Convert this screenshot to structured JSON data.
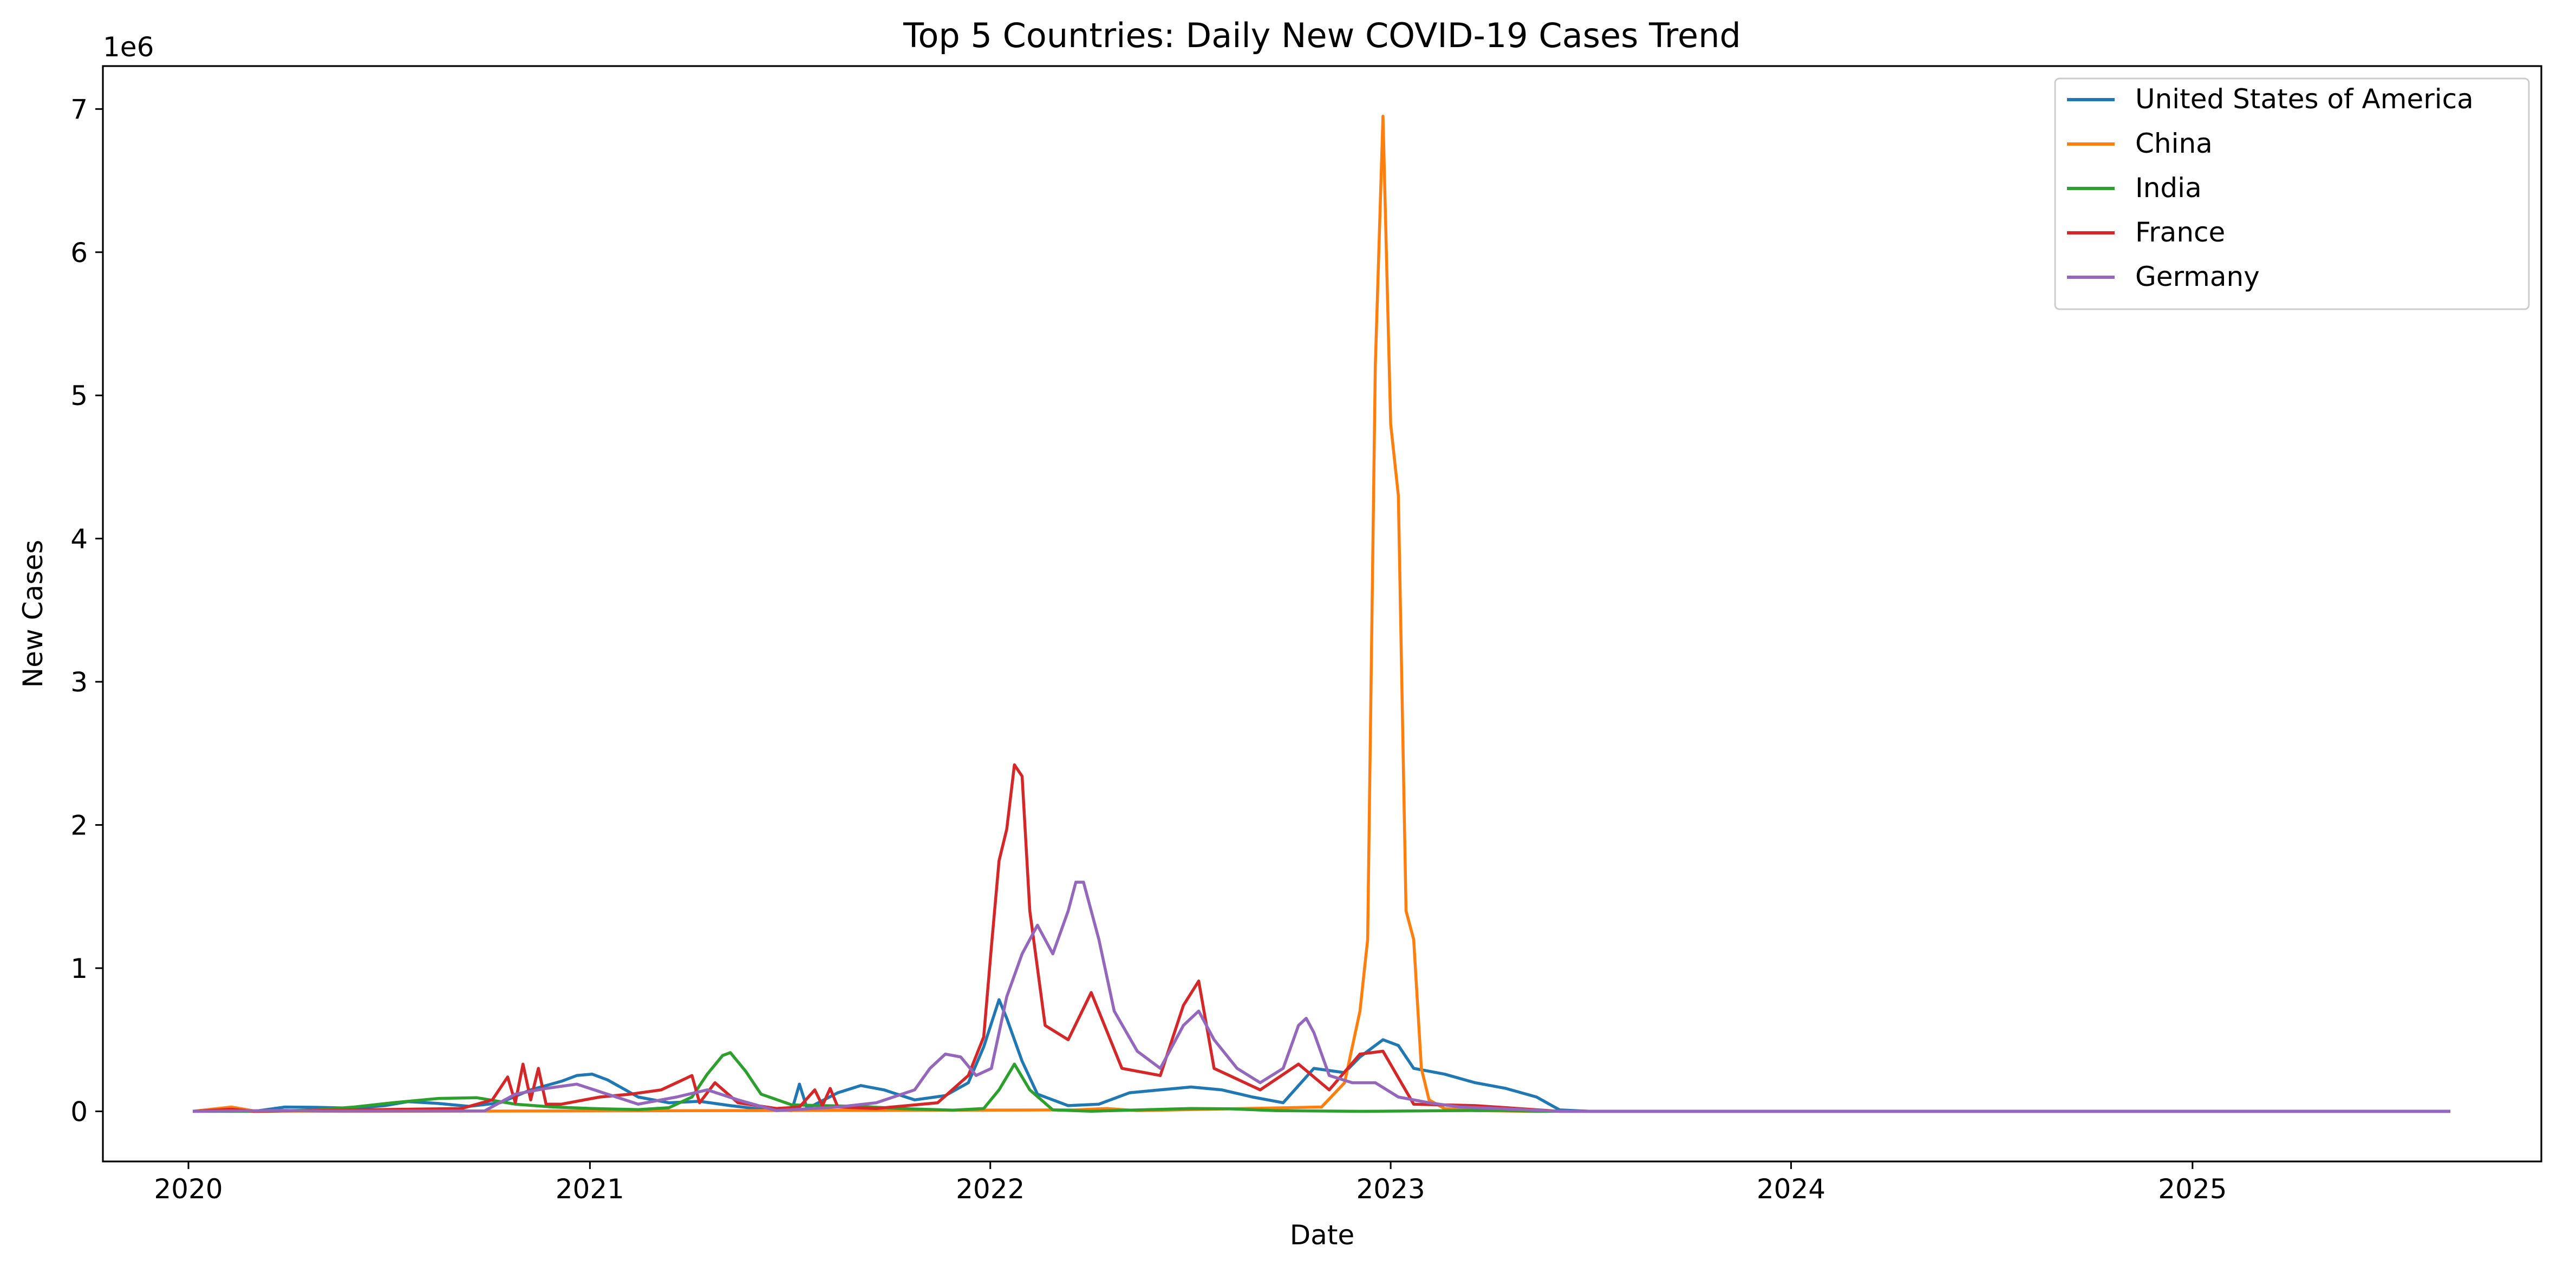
{
  "chart_data": {
    "type": "line",
    "title": "Top 5 Countries: Daily New COVID-19 Cases Trend",
    "xlabel": "Date",
    "ylabel": "New Cases",
    "y_offset_label": "1e6",
    "x_axis": "date",
    "xlim": [
      "2019-10-15",
      "2025-11-15"
    ],
    "ylim": [
      -350000,
      7300000
    ],
    "x_ticks": [
      "2020-01-01",
      "2021-01-01",
      "2022-01-01",
      "2023-01-01",
      "2024-01-01",
      "2025-01-01"
    ],
    "x_tick_labels": [
      "2020",
      "2021",
      "2022",
      "2023",
      "2024",
      "2025"
    ],
    "y_ticks": [
      0,
      1000000,
      2000000,
      3000000,
      4000000,
      5000000,
      6000000,
      7000000
    ],
    "y_tick_labels": [
      "0",
      "1",
      "2",
      "3",
      "4",
      "5",
      "6",
      "7"
    ],
    "legend_position": "top-right",
    "grid": false,
    "series": [
      {
        "name": "United States of America",
        "color": "#1f77b4",
        "points": [
          [
            "2020-01-05",
            0
          ],
          [
            "2020-03-01",
            0
          ],
          [
            "2020-03-29",
            30000
          ],
          [
            "2020-04-26",
            28000
          ],
          [
            "2020-05-31",
            22000
          ],
          [
            "2020-06-28",
            40000
          ],
          [
            "2020-07-19",
            68000
          ],
          [
            "2020-08-16",
            55000
          ],
          [
            "2020-09-13",
            35000
          ],
          [
            "2020-10-11",
            60000
          ],
          [
            "2020-11-08",
            150000
          ],
          [
            "2020-12-06",
            210000
          ],
          [
            "2020-12-20",
            250000
          ],
          [
            "2021-01-03",
            260000
          ],
          [
            "2021-01-17",
            220000
          ],
          [
            "2021-02-14",
            100000
          ],
          [
            "2021-03-14",
            60000
          ],
          [
            "2021-04-11",
            70000
          ],
          [
            "2021-05-09",
            40000
          ],
          [
            "2021-06-06",
            15000
          ],
          [
            "2021-07-04",
            5000
          ],
          [
            "2021-07-11",
            190000
          ],
          [
            "2021-07-18",
            20000
          ],
          [
            "2021-08-15",
            130000
          ],
          [
            "2021-09-05",
            180000
          ],
          [
            "2021-09-26",
            150000
          ],
          [
            "2021-10-24",
            80000
          ],
          [
            "2021-11-21",
            110000
          ],
          [
            "2021-12-12",
            200000
          ],
          [
            "2021-12-26",
            450000
          ],
          [
            "2022-01-09",
            780000
          ],
          [
            "2022-01-16",
            650000
          ],
          [
            "2022-01-30",
            350000
          ],
          [
            "2022-02-13",
            120000
          ],
          [
            "2022-03-13",
            40000
          ],
          [
            "2022-04-10",
            50000
          ],
          [
            "2022-05-08",
            130000
          ],
          [
            "2022-06-05",
            150000
          ],
          [
            "2022-07-03",
            170000
          ],
          [
            "2022-07-31",
            150000
          ],
          [
            "2022-08-28",
            100000
          ],
          [
            "2022-09-25",
            60000
          ],
          [
            "2022-10-23",
            300000
          ],
          [
            "2022-11-20",
            270000
          ],
          [
            "2022-12-04",
            380000
          ],
          [
            "2022-12-25",
            500000
          ],
          [
            "2023-01-08",
            460000
          ],
          [
            "2023-01-22",
            300000
          ],
          [
            "2023-02-19",
            260000
          ],
          [
            "2023-03-19",
            200000
          ],
          [
            "2023-04-16",
            160000
          ],
          [
            "2023-05-14",
            100000
          ],
          [
            "2023-06-04",
            10000
          ],
          [
            "2023-07-02",
            0
          ],
          [
            "2025-08-24",
            0
          ]
        ]
      },
      {
        "name": "China",
        "color": "#ff7f0e",
        "points": [
          [
            "2020-01-05",
            0
          ],
          [
            "2020-02-09",
            30000
          ],
          [
            "2020-03-01",
            3000
          ],
          [
            "2020-06-07",
            0
          ],
          [
            "2022-03-20",
            10000
          ],
          [
            "2022-04-17",
            20000
          ],
          [
            "2022-05-15",
            5000
          ],
          [
            "2022-10-30",
            30000
          ],
          [
            "2022-11-20",
            200000
          ],
          [
            "2022-12-04",
            700000
          ],
          [
            "2022-12-11",
            1200000
          ],
          [
            "2022-12-18",
            5200000
          ],
          [
            "2022-12-25",
            6950000
          ],
          [
            "2023-01-01",
            4800000
          ],
          [
            "2023-01-08",
            4300000
          ],
          [
            "2023-01-15",
            1400000
          ],
          [
            "2023-01-22",
            1200000
          ],
          [
            "2023-01-29",
            300000
          ],
          [
            "2023-02-05",
            80000
          ],
          [
            "2023-02-19",
            20000
          ],
          [
            "2023-03-19",
            5000
          ],
          [
            "2023-05-07",
            0
          ],
          [
            "2025-08-24",
            0
          ]
        ]
      },
      {
        "name": "India",
        "color": "#2ca02c",
        "points": [
          [
            "2020-01-05",
            0
          ],
          [
            "2020-03-15",
            0
          ],
          [
            "2020-04-26",
            10000
          ],
          [
            "2020-05-31",
            30000
          ],
          [
            "2020-07-05",
            60000
          ],
          [
            "2020-08-16",
            90000
          ],
          [
            "2020-09-20",
            95000
          ],
          [
            "2020-10-25",
            50000
          ],
          [
            "2020-11-29",
            30000
          ],
          [
            "2021-01-03",
            20000
          ],
          [
            "2021-02-14",
            12000
          ],
          [
            "2021-03-14",
            25000
          ],
          [
            "2021-04-04",
            100000
          ],
          [
            "2021-04-18",
            260000
          ],
          [
            "2021-05-02",
            390000
          ],
          [
            "2021-05-09",
            410000
          ],
          [
            "2021-05-23",
            280000
          ],
          [
            "2021-06-06",
            120000
          ],
          [
            "2021-07-04",
            45000
          ],
          [
            "2021-08-01",
            40000
          ],
          [
            "2021-09-05",
            35000
          ],
          [
            "2021-10-10",
            20000
          ],
          [
            "2021-11-28",
            8000
          ],
          [
            "2021-12-26",
            20000
          ],
          [
            "2022-01-09",
            150000
          ],
          [
            "2022-01-23",
            330000
          ],
          [
            "2022-02-06",
            150000
          ],
          [
            "2022-02-27",
            10000
          ],
          [
            "2022-04-03",
            1000
          ],
          [
            "2022-07-03",
            20000
          ],
          [
            "2022-08-07",
            18000
          ],
          [
            "2022-09-18",
            5000
          ],
          [
            "2022-12-04",
            0
          ],
          [
            "2023-04-09",
            7000
          ],
          [
            "2023-05-14",
            0
          ],
          [
            "2025-08-24",
            0
          ]
        ]
      },
      {
        "name": "France",
        "color": "#d62728",
        "points": [
          [
            "2020-01-05",
            0
          ],
          [
            "2020-02-09",
            15000
          ],
          [
            "2020-03-01",
            0
          ],
          [
            "2020-09-06",
            20000
          ],
          [
            "2020-10-04",
            80000
          ],
          [
            "2020-10-18",
            240000
          ],
          [
            "2020-10-25",
            60000
          ],
          [
            "2020-11-01",
            330000
          ],
          [
            "2020-11-08",
            80000
          ],
          [
            "2020-11-15",
            300000
          ],
          [
            "2020-11-22",
            50000
          ],
          [
            "2020-12-06",
            50000
          ],
          [
            "2021-01-10",
            100000
          ],
          [
            "2021-02-07",
            120000
          ],
          [
            "2021-03-07",
            150000
          ],
          [
            "2021-03-21",
            200000
          ],
          [
            "2021-04-04",
            250000
          ],
          [
            "2021-04-11",
            60000
          ],
          [
            "2021-04-25",
            200000
          ],
          [
            "2021-05-16",
            60000
          ],
          [
            "2021-06-20",
            20000
          ],
          [
            "2021-07-11",
            30000
          ],
          [
            "2021-07-25",
            150000
          ],
          [
            "2021-08-01",
            40000
          ],
          [
            "2021-08-08",
            160000
          ],
          [
            "2021-08-15",
            30000
          ],
          [
            "2021-09-19",
            20000
          ],
          [
            "2021-11-14",
            60000
          ],
          [
            "2021-12-12",
            250000
          ],
          [
            "2021-12-26",
            520000
          ],
          [
            "2022-01-02",
            1150000
          ],
          [
            "2022-01-09",
            1750000
          ],
          [
            "2022-01-16",
            1970000
          ],
          [
            "2022-01-23",
            2420000
          ],
          [
            "2022-01-30",
            2340000
          ],
          [
            "2022-02-06",
            1400000
          ],
          [
            "2022-02-20",
            600000
          ],
          [
            "2022-03-13",
            500000
          ],
          [
            "2022-04-03",
            830000
          ],
          [
            "2022-05-01",
            300000
          ],
          [
            "2022-06-05",
            250000
          ],
          [
            "2022-06-26",
            740000
          ],
          [
            "2022-07-10",
            910000
          ],
          [
            "2022-07-24",
            300000
          ],
          [
            "2022-09-04",
            150000
          ],
          [
            "2022-10-09",
            330000
          ],
          [
            "2022-11-06",
            150000
          ],
          [
            "2022-12-04",
            400000
          ],
          [
            "2022-12-25",
            420000
          ],
          [
            "2023-01-22",
            50000
          ],
          [
            "2023-03-19",
            40000
          ],
          [
            "2023-06-04",
            0
          ],
          [
            "2025-08-24",
            0
          ]
        ]
      },
      {
        "name": "Germany",
        "color": "#9467bd",
        "points": [
          [
            "2020-01-05",
            0
          ],
          [
            "2020-03-29",
            6000
          ],
          [
            "2020-05-03",
            2000
          ],
          [
            "2020-09-27",
            3000
          ],
          [
            "2020-10-25",
            120000
          ],
          [
            "2020-11-22",
            160000
          ],
          [
            "2020-12-20",
            190000
          ],
          [
            "2021-01-17",
            120000
          ],
          [
            "2021-02-14",
            50000
          ],
          [
            "2021-03-21",
            100000
          ],
          [
            "2021-04-18",
            150000
          ],
          [
            "2021-05-16",
            80000
          ],
          [
            "2021-06-20",
            5000
          ],
          [
            "2021-08-15",
            30000
          ],
          [
            "2021-09-19",
            60000
          ],
          [
            "2021-10-24",
            150000
          ],
          [
            "2021-11-07",
            300000
          ],
          [
            "2021-11-21",
            400000
          ],
          [
            "2021-12-05",
            380000
          ],
          [
            "2021-12-19",
            250000
          ],
          [
            "2022-01-02",
            300000
          ],
          [
            "2022-01-16",
            800000
          ],
          [
            "2022-01-30",
            1100000
          ],
          [
            "2022-02-13",
            1300000
          ],
          [
            "2022-02-27",
            1100000
          ],
          [
            "2022-03-13",
            1400000
          ],
          [
            "2022-03-20",
            1600000
          ],
          [
            "2022-03-27",
            1600000
          ],
          [
            "2022-04-10",
            1200000
          ],
          [
            "2022-04-24",
            700000
          ],
          [
            "2022-05-15",
            420000
          ],
          [
            "2022-06-05",
            300000
          ],
          [
            "2022-06-26",
            600000
          ],
          [
            "2022-07-10",
            700000
          ],
          [
            "2022-07-24",
            500000
          ],
          [
            "2022-08-14",
            300000
          ],
          [
            "2022-09-04",
            200000
          ],
          [
            "2022-09-25",
            300000
          ],
          [
            "2022-10-09",
            600000
          ],
          [
            "2022-10-16",
            650000
          ],
          [
            "2022-10-23",
            550000
          ],
          [
            "2022-11-06",
            250000
          ],
          [
            "2022-11-27",
            200000
          ],
          [
            "2022-12-18",
            200000
          ],
          [
            "2023-01-08",
            100000
          ],
          [
            "2023-02-05",
            60000
          ],
          [
            "2023-03-05",
            30000
          ],
          [
            "2023-04-09",
            20000
          ],
          [
            "2023-06-04",
            0
          ],
          [
            "2025-08-24",
            0
          ]
        ]
      }
    ]
  }
}
